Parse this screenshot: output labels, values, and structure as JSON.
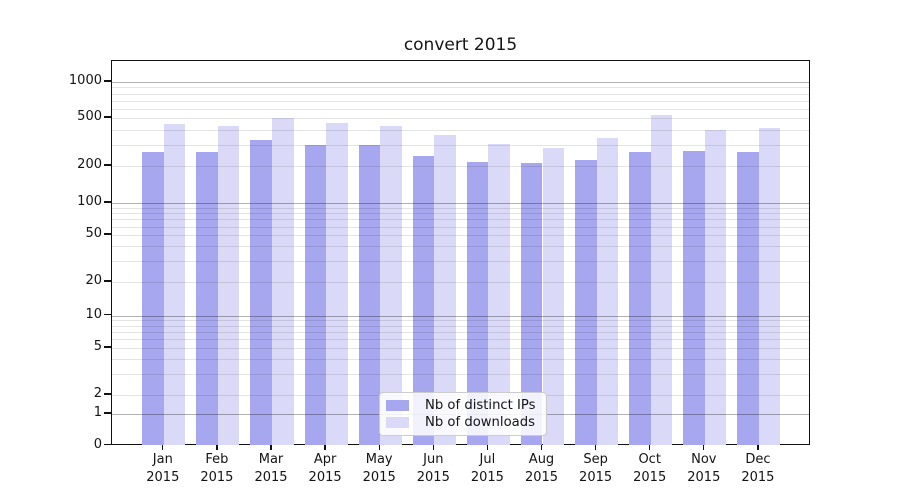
{
  "title": "convert 2015",
  "colors": {
    "bar_dark": "#a7a7f0",
    "bar_light": "#dadaf8",
    "major_grid": "#b0b0b0",
    "minor_grid": "#e4e4e4",
    "spine": "#111111",
    "text": "#141414",
    "legend_border": "#cccccc"
  },
  "chart_data": {
    "type": "bar",
    "title": "convert 2015",
    "categories": [
      "Jan 2015",
      "Feb 2015",
      "Mar 2015",
      "Apr 2015",
      "May 2015",
      "Jun 2015",
      "Jul 2015",
      "Aug 2015",
      "Sep 2015",
      "Oct 2015",
      "Nov 2015",
      "Dec 2015"
    ],
    "series": [
      {
        "name": "Nb of distinct IPs",
        "color": "#a7a7f0",
        "values": [
          261,
          261,
          330,
          298,
          298,
          244,
          216,
          212,
          223,
          262,
          268,
          262
        ]
      },
      {
        "name": "Nb of downloads",
        "color": "#dadaf8",
        "values": [
          448,
          427,
          501,
          452,
          429,
          362,
          303,
          284,
          343,
          527,
          395,
          415
        ]
      }
    ],
    "xlabel": "",
    "ylabel": "",
    "yscale": "log-like (linear 0-1, logarithmic above)",
    "y_ticks": [
      0,
      1,
      2,
      5,
      10,
      20,
      50,
      100,
      200,
      500,
      1000
    ],
    "ylim": [
      0,
      1500
    ],
    "grid": "horizontal, major and minor",
    "legend": {
      "position": "lower center inside plot",
      "entries": [
        "Nb of distinct IPs",
        "Nb of downloads"
      ]
    }
  }
}
